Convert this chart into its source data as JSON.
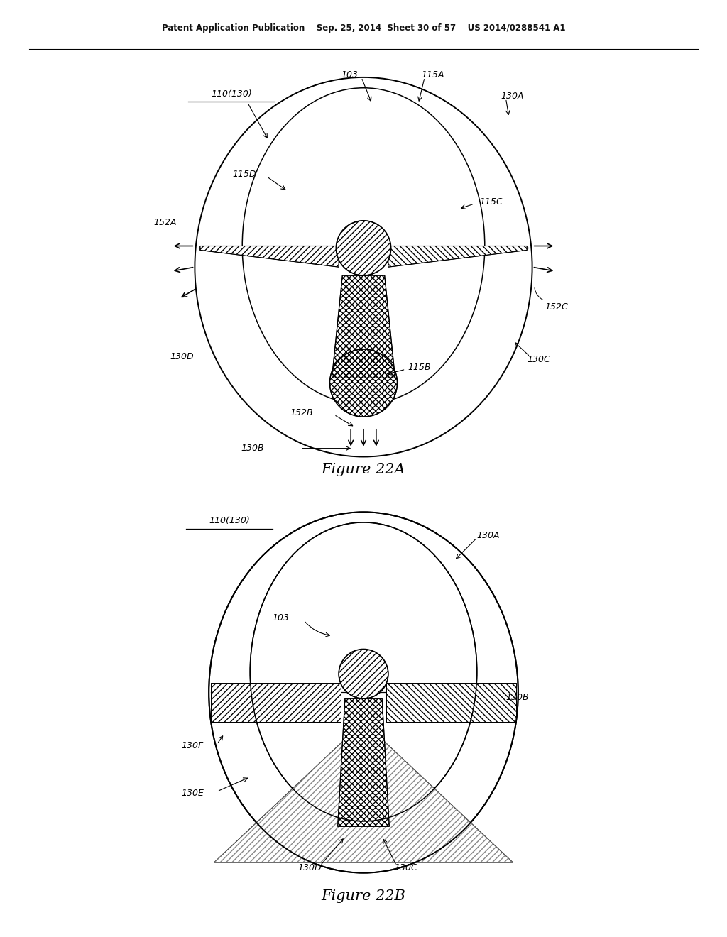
{
  "bg_color": "#ffffff",
  "line_color": "#000000",
  "header_text": "Patent Application Publication    Sep. 25, 2014  Sheet 30 of 57    US 2014/0288541 A1",
  "fig22a_title": "Figure 22A",
  "fig22b_title": "Figure 22B",
  "fig22a_labels": {
    "110_130": "110(130)",
    "103": "103",
    "115A": "115A",
    "130A": "130A",
    "115D": "115D",
    "115C": "115C",
    "152A": "152A",
    "152C": "152C",
    "130D": "130D",
    "130C": "130C",
    "115B": "115B",
    "152B": "152B",
    "130B": "130B"
  },
  "fig22b_labels": {
    "110_130": "110(130)",
    "103": "103",
    "130A": "130A",
    "130B": "130B",
    "130C": "130C",
    "130D": "130D",
    "130E": "130E",
    "130F": "130F"
  }
}
